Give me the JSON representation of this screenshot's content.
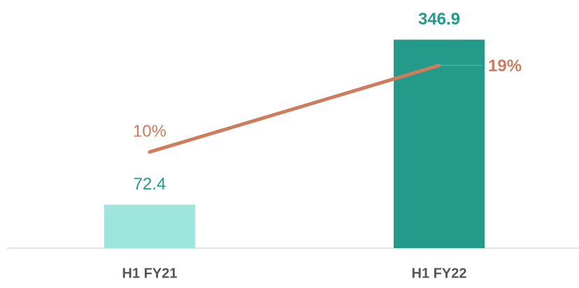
{
  "chart_data": {
    "type": "bar-line",
    "categories": [
      "H1 FY21",
      "H1 FY22"
    ],
    "series": [
      {
        "type": "bar",
        "colors": [
          "#9ee6dc",
          "#239a8a"
        ],
        "values": [
          72.4,
          346.9
        ]
      },
      {
        "type": "line",
        "axis": "y2",
        "color": "#cd7c5c",
        "values": [
          10,
          19
        ],
        "value_labels": [
          "10%",
          "19%"
        ]
      }
    ],
    "ylim": [
      0,
      400
    ],
    "y2lim": [
      0,
      25
    ]
  }
}
